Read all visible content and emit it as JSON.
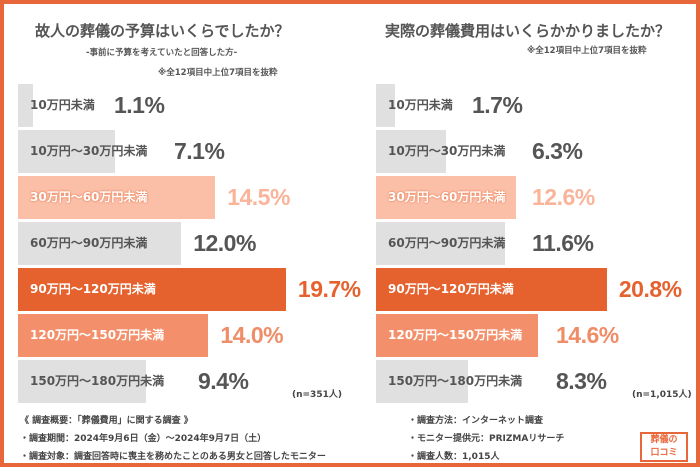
{
  "chart_data": [
    {
      "type": "bar",
      "orientation": "horizontal",
      "title": "故人の葬儀の予算はいくらでしたか？",
      "subtitle": "-事前に予算を考えていたと回答した方-",
      "note": "※全12項目中上位7項目を抜粋",
      "sample": "(n=351人)",
      "categories": [
        "10万円未満",
        "10万円～30万円未満",
        "30万円～60万円未満",
        "60万円～90万円未満",
        "90万円～120万円未満",
        "120万円～150万円未満",
        "150万円～180万円未満"
      ],
      "values": [
        1.1,
        7.1,
        14.5,
        12.0,
        19.7,
        14.0,
        9.4
      ],
      "labels": [
        "1.1%",
        "7.1%",
        "14.5%",
        "12.0%",
        "19.7%",
        "14.0%",
        "9.4%"
      ],
      "bar_colors": [
        "#e0e0e0",
        "#e0e0e0",
        "#fbbfa8",
        "#e0e0e0",
        "#e5622f",
        "#f3906b",
        "#e0e0e0"
      ],
      "value_colors": [
        "#555555",
        "#555555",
        "#f9b49a",
        "#555555",
        "#e5622f",
        "#f08c66",
        "#555555"
      ]
    },
    {
      "type": "bar",
      "orientation": "horizontal",
      "title": "実際の葬儀費用はいくらかかりましたか？",
      "note": "※全12項目中上位7項目を抜粋",
      "sample": "(n=1,015人)",
      "categories": [
        "10万円未満",
        "10万円～30万円未満",
        "30万円～60万円未満",
        "60万円～90万円未満",
        "90万円～120万円未満",
        "120万円～150万円未満",
        "150万円～180万円未満"
      ],
      "values": [
        1.7,
        6.3,
        12.6,
        11.6,
        20.8,
        14.6,
        8.3
      ],
      "labels": [
        "1.7%",
        "6.3%",
        "12.6%",
        "11.6%",
        "20.8%",
        "14.6%",
        "8.3%"
      ],
      "bar_colors": [
        "#e0e0e0",
        "#e0e0e0",
        "#fbbfa8",
        "#e0e0e0",
        "#e5622f",
        "#f3906b",
        "#e0e0e0"
      ],
      "value_colors": [
        "#555555",
        "#555555",
        "#f9b49a",
        "#555555",
        "#e5622f",
        "#f08c66",
        "#555555"
      ]
    }
  ],
  "footer": {
    "left": [
      "《 調査概要：「葬儀費用」に関する調査 》",
      "・調査期間：2024年9月6日（金）～2024年9月7日（土）",
      "・調査対象：調査回答時に喪主を務めたことのある男女と回答したモニター"
    ],
    "right": [
      "・調査方法：インターネット調査",
      "・モニター提供元：PRIZMAリサーチ",
      "・調査人数：1,015人"
    ]
  },
  "logo": {
    "line1": "葬儀の",
    "line2": "口コミ"
  },
  "colors": {
    "accent": "#e8673a"
  }
}
